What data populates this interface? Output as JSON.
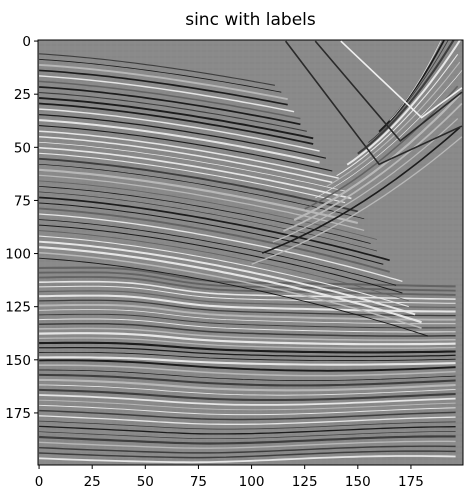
{
  "chart_data": {
    "type": "heatmap",
    "title": "sinc with labels",
    "xlabel": "",
    "ylabel": "",
    "colormap": "gray",
    "x_range": [
      0,
      199
    ],
    "y_range": [
      0,
      199
    ],
    "y_inverted": true,
    "grid": false,
    "legend": "none",
    "x_ticks": [
      0,
      25,
      50,
      75,
      100,
      125,
      150,
      175
    ],
    "x_tick_labels": [
      "0",
      "25",
      "50",
      "75",
      "100",
      "125",
      "150",
      "175"
    ],
    "y_ticks": [
      0,
      25,
      50,
      75,
      100,
      125,
      150,
      175
    ],
    "y_tick_labels": [
      "0",
      "25",
      "50",
      "75",
      "100",
      "125",
      "150",
      "175"
    ],
    "colors": {
      "background": "#ffffff",
      "mid_gray": "#8a8a8a",
      "axis": "#000000"
    }
  }
}
